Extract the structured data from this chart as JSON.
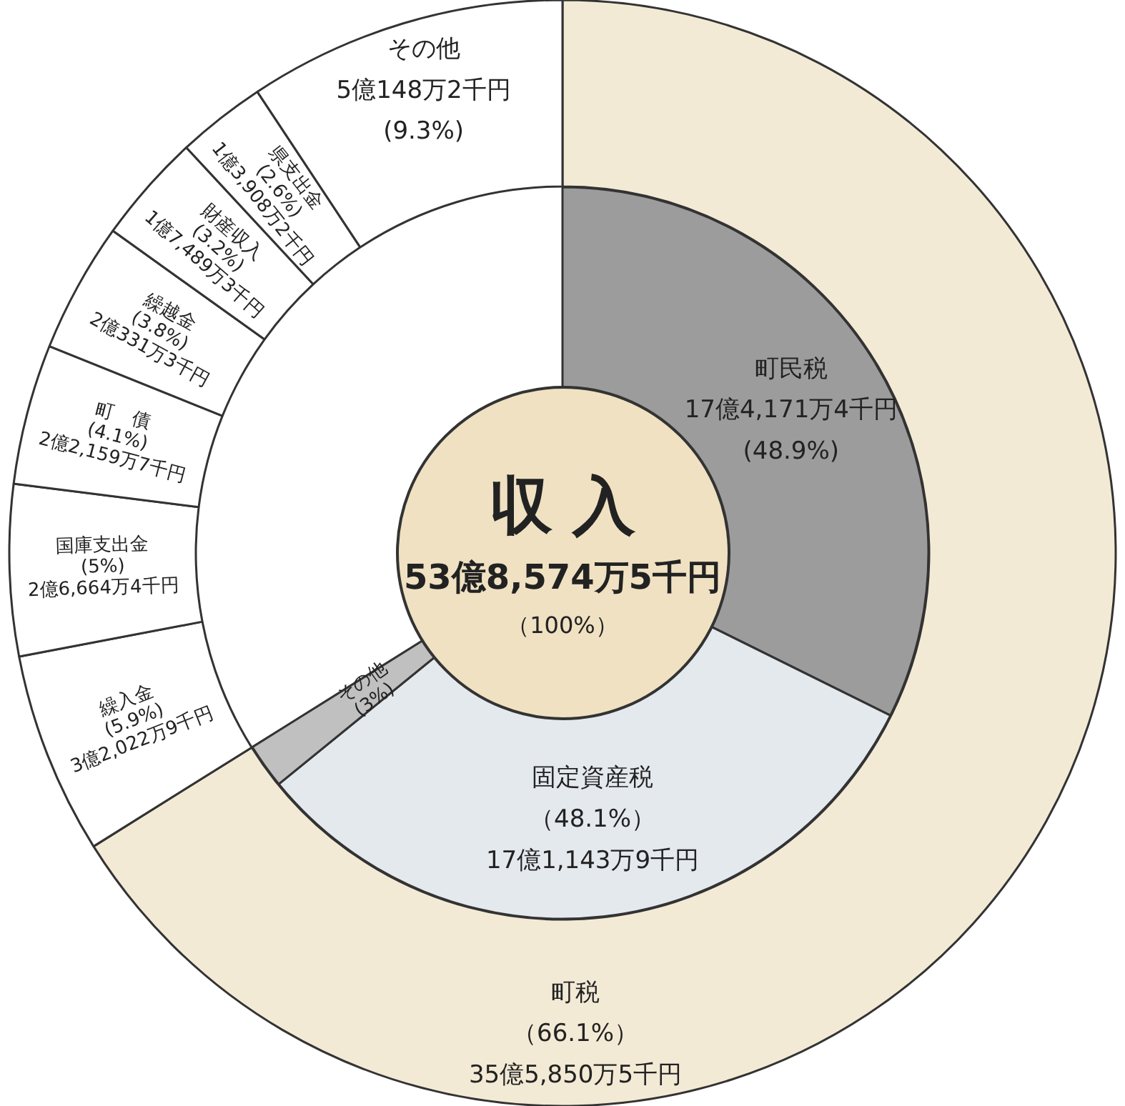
{
  "chart_data": [
    {
      "type": "donut",
      "title": "収入",
      "subtitle": "53億8,574万5千円",
      "annotations": [
        "（100%）"
      ],
      "legend": false,
      "categories": [
        "町税",
        "繰入金",
        "国庫支出金",
        "町　債",
        "繰越金",
        "財産収入",
        "県支出金",
        "その他"
      ],
      "values": [
        66.1,
        5.9,
        5,
        4.1,
        3.8,
        3.2,
        2.6,
        9.3
      ],
      "colors": [
        "#f3ead6",
        "#ffffff",
        "#ffffff",
        "#ffffff",
        "#ffffff",
        "#ffffff",
        "#ffffff",
        "#ffffff"
      ],
      "value_labels": [
        "（66.1%）\n35億5,850万5千円",
        "(5.9%)\n3億2,022万9千円",
        "(5%)\n2億6,664万4千円",
        "(4.1%)\n2億2,159万7千円",
        "(3.8%)\n2億331万3千円",
        "(3.2%)\n1億7,489万3千円",
        "(2.6%)\n1億3,908万2千円",
        "5億148万2千円\n(9.3%)"
      ]
    },
    {
      "type": "donut",
      "legend": false,
      "categories": [
        "町民税",
        "固定資産税",
        "その他"
      ],
      "values": [
        48.9,
        48.1,
        3
      ],
      "colors": [
        "#9c9c9c",
        "#e4e9ee",
        "#c0c0c0"
      ],
      "value_labels": [
        "17億4,171万4千円\n(48.9%)",
        "（48.1%）\n17億1,143万9千円",
        "(3%)"
      ]
    }
  ]
}
